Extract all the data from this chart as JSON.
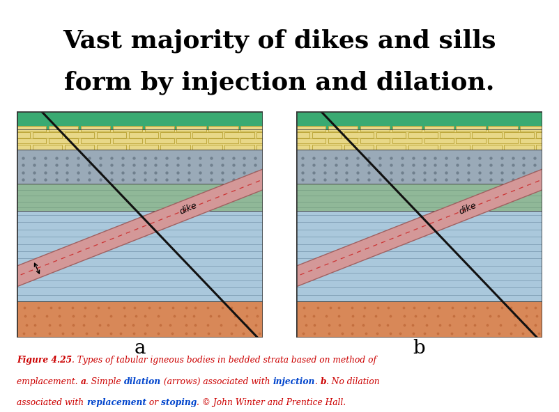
{
  "title_line1": "Vast majority of dikes and sills",
  "title_line2": "form by injection and dilation.",
  "title_fontsize": 26,
  "title_color": "#000000",
  "fig_width": 8.02,
  "fig_height": 5.92,
  "bg_color": "#ffffff",
  "panel_a_label": "a",
  "panel_b_label": "b",
  "layer_colors": {
    "green_top": "#3aaa72",
    "yellow_limestone": "#e8d888",
    "gray_dotted": "#9aaab8",
    "green_shale": "#90b898",
    "blue_layer": "#aac8dc",
    "orange_bottom": "#d88858"
  },
  "dike_color": "#d49898",
  "dike_edge_color": "#a06060",
  "fault_color": "#111111",
  "dike_label_color": "#000000",
  "dike_dashes_color": "#cc3333",
  "red": "#cc0000",
  "blue": "#0044cc"
}
